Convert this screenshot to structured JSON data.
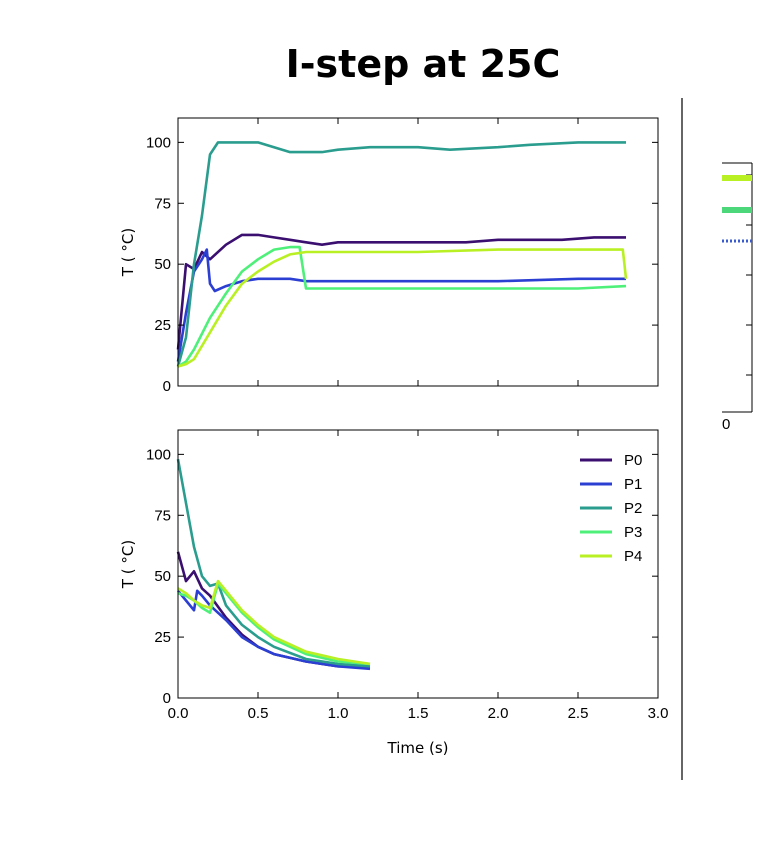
{
  "title": "I-step at 25C",
  "colors": {
    "P0": "#3b0f70",
    "P1": "#2c3fd3",
    "P2": "#2a9d8f",
    "P3": "#4ef07a",
    "P4": "#b8f024"
  },
  "chart_data": [
    {
      "type": "line",
      "title": "",
      "xlabel": "",
      "ylabel": "T ( °C)",
      "xlim": [
        0,
        3.0
      ],
      "ylim": [
        0,
        110
      ],
      "xticks": [
        0.0,
        0.5,
        1.0,
        1.5,
        2.0,
        2.5,
        3.0
      ],
      "xtick_labels_visible": false,
      "yticks": [
        0,
        25,
        50,
        75,
        100
      ],
      "ytick_labels": [
        "0",
        "25",
        "50",
        "75",
        "100"
      ],
      "grid": false,
      "legend": false,
      "series": [
        {
          "name": "P0",
          "x": [
            0,
            0.05,
            0.1,
            0.15,
            0.2,
            0.3,
            0.4,
            0.5,
            0.6,
            0.7,
            0.8,
            0.9,
            1.0,
            1.2,
            1.4,
            1.6,
            1.8,
            2.0,
            2.2,
            2.4,
            2.6,
            2.8
          ],
          "y": [
            15,
            50,
            48,
            55,
            52,
            58,
            62,
            62,
            61,
            60,
            59,
            58,
            59,
            59,
            59,
            59,
            59,
            60,
            60,
            60,
            61,
            61
          ]
        },
        {
          "name": "P1",
          "x": [
            0,
            0.05,
            0.1,
            0.15,
            0.18,
            0.2,
            0.23,
            0.3,
            0.4,
            0.5,
            0.6,
            0.7,
            0.8,
            1.0,
            1.5,
            2.0,
            2.5,
            2.8
          ],
          "y": [
            10,
            30,
            47,
            52,
            56,
            42,
            39,
            41,
            43,
            44,
            44,
            44,
            43,
            43,
            43,
            43,
            44,
            44
          ]
        },
        {
          "name": "P2",
          "x": [
            0,
            0.05,
            0.1,
            0.15,
            0.18,
            0.2,
            0.25,
            0.3,
            0.5,
            0.6,
            0.7,
            0.9,
            1.0,
            1.2,
            1.5,
            1.7,
            2.0,
            2.2,
            2.5,
            2.8
          ],
          "y": [
            8,
            20,
            50,
            70,
            85,
            95,
            100,
            100,
            100,
            98,
            96,
            96,
            97,
            98,
            98,
            97,
            98,
            99,
            100,
            100
          ]
        },
        {
          "name": "P3",
          "x": [
            0,
            0.05,
            0.1,
            0.2,
            0.3,
            0.4,
            0.5,
            0.6,
            0.7,
            0.76,
            0.8,
            1.0,
            1.5,
            2.0,
            2.5,
            2.8
          ],
          "y": [
            8,
            10,
            15,
            28,
            38,
            47,
            52,
            56,
            57,
            57,
            40,
            40,
            40,
            40,
            40,
            41
          ]
        },
        {
          "name": "P4",
          "x": [
            0,
            0.05,
            0.1,
            0.2,
            0.3,
            0.4,
            0.5,
            0.6,
            0.7,
            0.8,
            1.0,
            1.5,
            2.0,
            2.5,
            2.78,
            2.8
          ],
          "y": [
            8,
            9,
            11,
            22,
            33,
            42,
            47,
            51,
            54,
            55,
            55,
            55,
            56,
            56,
            56,
            44
          ]
        }
      ]
    },
    {
      "type": "line",
      "title": "",
      "xlabel": "Time (s)",
      "ylabel": "T ( °C)",
      "xlim": [
        0,
        3.0
      ],
      "ylim": [
        0,
        110
      ],
      "xticks": [
        0.0,
        0.5,
        1.0,
        1.5,
        2.0,
        2.5,
        3.0
      ],
      "xtick_labels": [
        "0.0",
        "0.5",
        "1.0",
        "1.5",
        "2.0",
        "2.5",
        "3.0"
      ],
      "yticks": [
        0,
        25,
        50,
        75,
        100
      ],
      "ytick_labels": [
        "0",
        "25",
        "50",
        "75",
        "100"
      ],
      "grid": false,
      "legend": "top-right",
      "series": [
        {
          "name": "P0",
          "x": [
            0,
            0.05,
            0.1,
            0.15,
            0.2,
            0.3,
            0.4,
            0.5,
            0.6,
            0.8,
            1.0,
            1.2
          ],
          "y": [
            60,
            48,
            52,
            45,
            42,
            33,
            26,
            21,
            18,
            15,
            13,
            13
          ]
        },
        {
          "name": "P1",
          "x": [
            0,
            0.05,
            0.1,
            0.12,
            0.15,
            0.2,
            0.3,
            0.4,
            0.5,
            0.6,
            0.8,
            1.0,
            1.2
          ],
          "y": [
            44,
            40,
            36,
            44,
            42,
            38,
            32,
            25,
            21,
            18,
            15,
            13,
            12
          ]
        },
        {
          "name": "P2",
          "x": [
            0,
            0.05,
            0.1,
            0.15,
            0.2,
            0.25,
            0.3,
            0.4,
            0.5,
            0.6,
            0.8,
            1.0,
            1.2
          ],
          "y": [
            98,
            80,
            62,
            50,
            46,
            47,
            38,
            30,
            25,
            21,
            16,
            14,
            13
          ]
        },
        {
          "name": "P3",
          "x": [
            0,
            0.05,
            0.1,
            0.15,
            0.2,
            0.25,
            0.3,
            0.4,
            0.5,
            0.6,
            0.8,
            1.0,
            1.2
          ],
          "y": [
            43,
            42,
            40,
            37,
            35,
            47,
            43,
            35,
            29,
            24,
            18,
            15,
            14
          ]
        },
        {
          "name": "P4",
          "x": [
            0,
            0.05,
            0.1,
            0.15,
            0.2,
            0.25,
            0.3,
            0.4,
            0.5,
            0.6,
            0.8,
            1.0,
            1.2
          ],
          "y": [
            45,
            43,
            40,
            38,
            37,
            48,
            44,
            36,
            30,
            25,
            19,
            16,
            14
          ]
        }
      ]
    }
  ],
  "side_panel": {
    "tick_label": "0",
    "colors": [
      "#b8f024",
      "#4cd87a",
      "#3a5bd0"
    ]
  }
}
